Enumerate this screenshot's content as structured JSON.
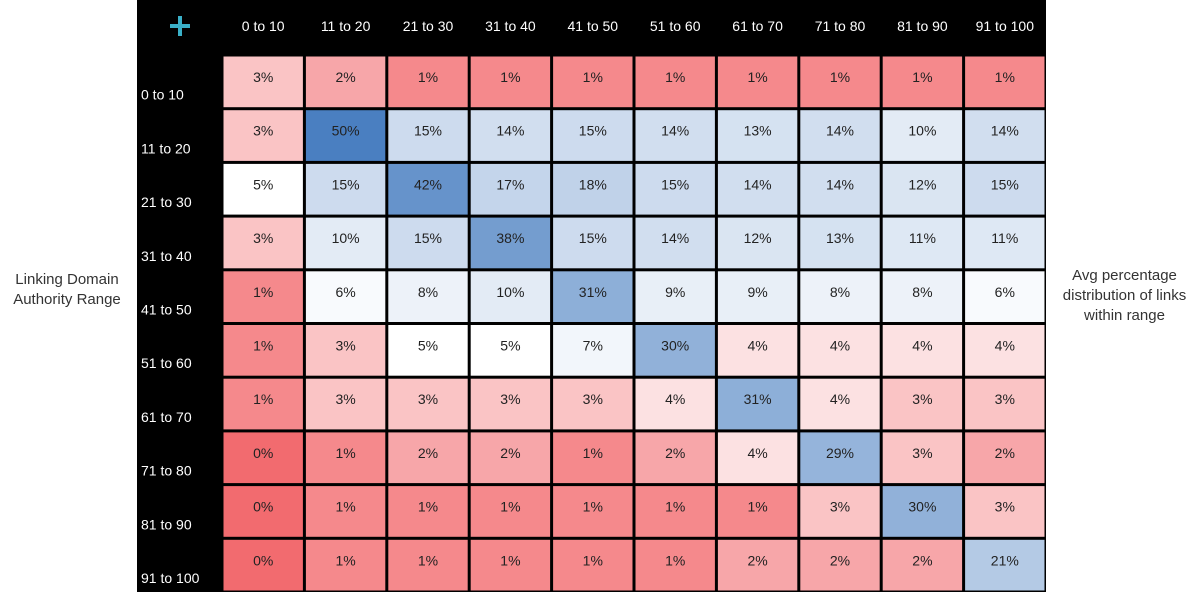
{
  "left_label_lines": [
    "Linking Domain",
    "Authority Range"
  ],
  "right_label_lines": [
    "Avg percentage",
    "distribution of links",
    "within range"
  ],
  "corner_icon": "plus-icon",
  "colors": {
    "corner": "#000000",
    "plus": "#3ab0c8",
    "low": "#f26b6f",
    "mid": "#ffffff",
    "high": "#4a7fc1"
  },
  "chart_data": {
    "type": "heatmap",
    "title": "",
    "x_categories": [
      "0 to 10",
      "11 to 20",
      "21 to 30",
      "31 to 40",
      "41 to 50",
      "51 to 60",
      "61 to 70",
      "71 to 80",
      "81 to 90",
      "91 to 100"
    ],
    "y_categories": [
      "0 to 10",
      "11 to 20",
      "21 to 30",
      "31 to 40",
      "41 to 50",
      "51 to 60",
      "61 to 70",
      "71 to 80",
      "81 to 90",
      "91 to 100"
    ],
    "ylabel": "Linking Domain Authority Range",
    "value_label": "Avg percentage distribution of links within range",
    "unit": "%",
    "values": [
      [
        3,
        2,
        1,
        1,
        1,
        1,
        1,
        1,
        1,
        1
      ],
      [
        3,
        50,
        15,
        14,
        15,
        14,
        13,
        14,
        10,
        14
      ],
      [
        5,
        15,
        42,
        17,
        18,
        15,
        14,
        14,
        12,
        15
      ],
      [
        3,
        10,
        15,
        38,
        15,
        14,
        12,
        13,
        11,
        11
      ],
      [
        1,
        6,
        8,
        10,
        31,
        9,
        9,
        8,
        8,
        6
      ],
      [
        1,
        3,
        5,
        5,
        7,
        30,
        4,
        4,
        4,
        4
      ],
      [
        1,
        3,
        3,
        3,
        3,
        4,
        31,
        4,
        3,
        3
      ],
      [
        0,
        1,
        2,
        2,
        1,
        2,
        4,
        29,
        3,
        2
      ],
      [
        0,
        1,
        1,
        1,
        1,
        1,
        1,
        3,
        30,
        3
      ],
      [
        0,
        1,
        1,
        1,
        1,
        1,
        2,
        2,
        2,
        21
      ]
    ]
  }
}
